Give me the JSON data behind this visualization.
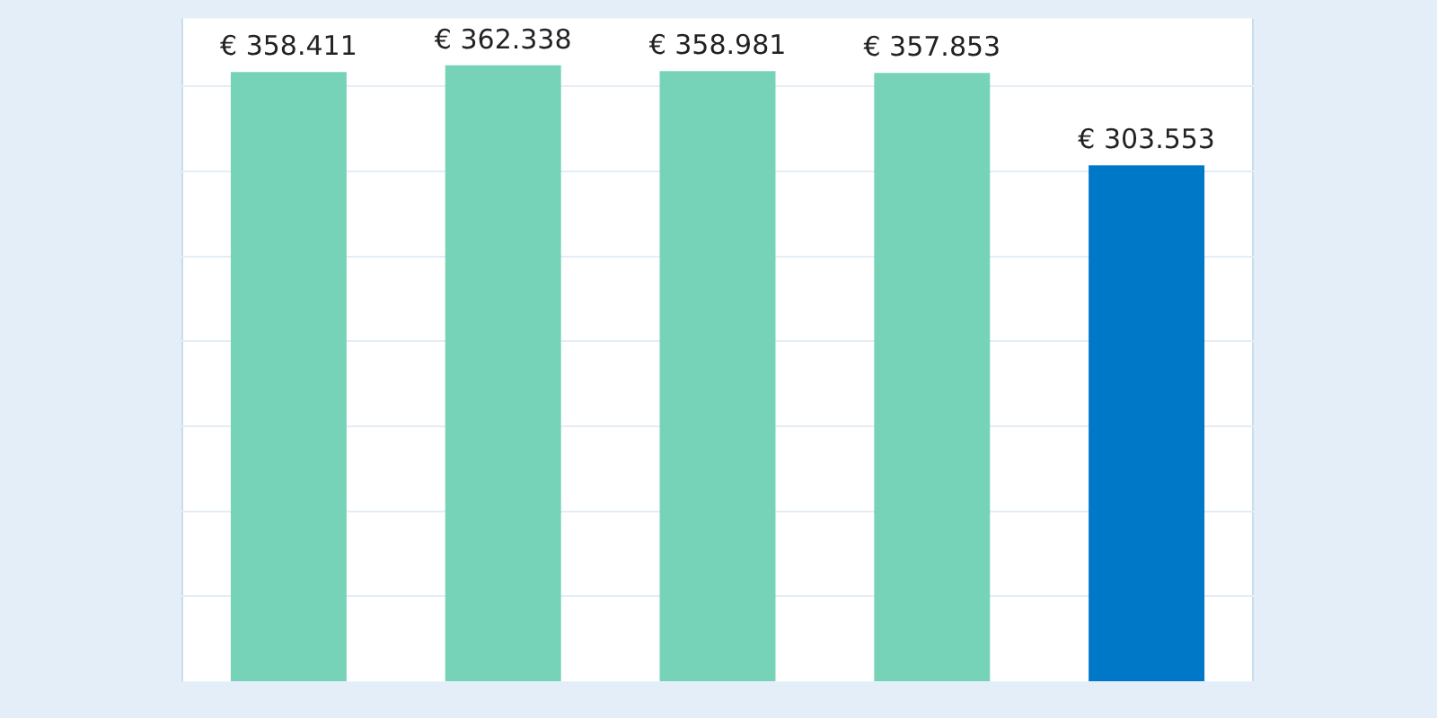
{
  "chart_data": {
    "type": "bar",
    "categories": [
      null,
      null,
      null,
      null,
      null
    ],
    "values": [
      358411,
      362338,
      358981,
      357853,
      303553
    ],
    "colors": [
      "#77d3b8",
      "#77d3b8",
      "#77d3b8",
      "#77d3b8",
      "#0078c8"
    ],
    "value_labels": [
      "€ 358.411",
      "€ 362.338",
      "€ 358.981",
      "€ 357.853",
      "€ 303.553"
    ],
    "ylim": [
      0,
      390000
    ],
    "yticks": [
      {
        "value": 50000,
        "label": null
      },
      {
        "value": 100000,
        "label": null
      },
      {
        "value": 150000,
        "label": null
      },
      {
        "value": 200000,
        "label": null
      },
      {
        "value": 250000,
        "label": null
      },
      {
        "value": 300000,
        "label": null
      },
      {
        "value": 350000,
        "label": null
      }
    ],
    "grid": "y",
    "legend": false
  }
}
